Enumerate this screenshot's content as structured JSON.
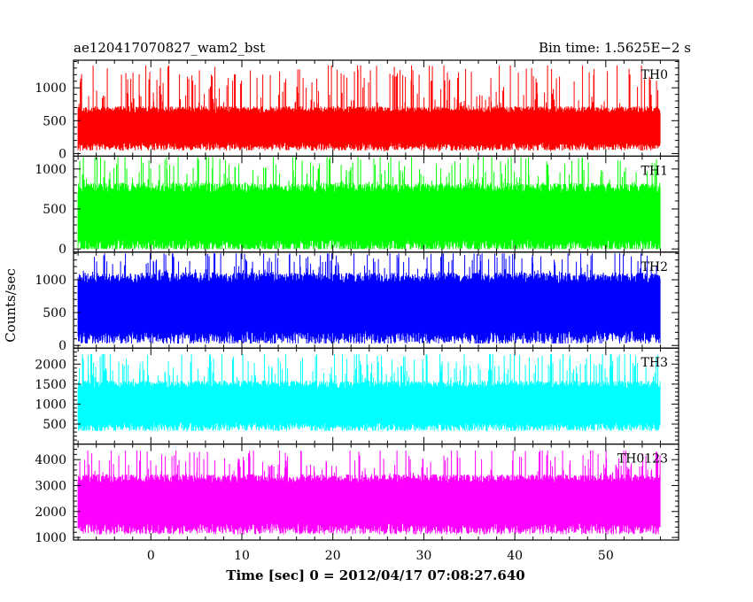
{
  "header": {
    "title": "ae120417070827_wam2_bst",
    "bin_time": "Bin time: 1.5625E−2 s"
  },
  "axes": {
    "ylabel": "Counts/sec",
    "xlabel": "Time [sec] 0 = 2012/04/17 07:08:27.640"
  },
  "chart_data": {
    "type": "line",
    "title": "ae120417070827_wam2_bst",
    "xlabel": "Time [sec] 0 = 2012/04/17 07:08:27.640",
    "ylabel": "Counts/sec",
    "xlim": [
      -8.5,
      58.0
    ],
    "xticks": [
      0,
      10,
      20,
      30,
      40,
      50
    ],
    "x_range": [
      -8.0,
      56.0
    ],
    "bin_time": 0.015625,
    "panels": [
      {
        "name": "TH0",
        "color": "#ff0000",
        "ylim": [
          -40,
          1420
        ],
        "yticks": [
          0,
          500,
          1000
        ],
        "band": [
          170,
          620
        ],
        "spike_max": 1340,
        "floor": 30
      },
      {
        "name": "TH1",
        "color": "#00ff00",
        "ylim": [
          -40,
          1160
        ],
        "yticks": [
          0,
          500,
          1000
        ],
        "band": [
          120,
          700
        ],
        "spike_max": 1150,
        "floor": 0
      },
      {
        "name": "TH2",
        "color": "#0000ff",
        "ylim": [
          -40,
          1420
        ],
        "yticks": [
          0,
          500,
          1000
        ],
        "band": [
          220,
          950
        ],
        "spike_max": 1400,
        "floor": 30
      },
      {
        "name": "TH3",
        "color": "#00ffff",
        "ylim": [
          0,
          2400
        ],
        "yticks": [
          500,
          1000,
          1500,
          2000
        ],
        "band": [
          550,
          1400
        ],
        "spike_max": 2250,
        "floor": 330
      },
      {
        "name": "TH0123",
        "color": "#ff00ff",
        "ylim": [
          900,
          4600
        ],
        "yticks": [
          1000,
          2000,
          3000,
          4000
        ],
        "band": [
          1550,
          3100
        ],
        "spike_max": 4350,
        "floor": 1100
      }
    ]
  }
}
